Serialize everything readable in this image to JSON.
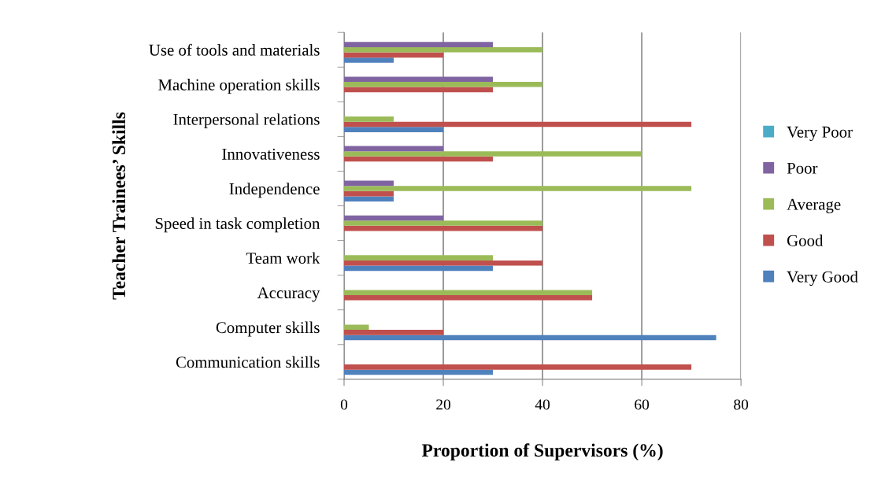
{
  "chart_data": {
    "type": "bar",
    "orientation": "horizontal",
    "xlabel": "Proportion of Supervisors (%)",
    "ylabel": "Teacher Trainees’ Skills",
    "categories": [
      "Use of tools and materials",
      "Machine operation skills",
      "Interpersonal relations",
      "Innovativeness",
      "Independence",
      "Speed in task completion",
      "Team work",
      "Accuracy",
      "Computer skills",
      "Communication skills"
    ],
    "series": [
      {
        "name": "Very Good",
        "color": "#4f81bd",
        "values": [
          10,
          null,
          20,
          null,
          10,
          null,
          30,
          null,
          75,
          30
        ]
      },
      {
        "name": "Good",
        "color": "#c0504d",
        "values": [
          20,
          30,
          70,
          30,
          10,
          40,
          40,
          50,
          20,
          70
        ]
      },
      {
        "name": "Average",
        "color": "#9bbb59",
        "values": [
          40,
          40,
          10,
          60,
          70,
          40,
          30,
          50,
          5,
          null
        ]
      },
      {
        "name": "Poor",
        "color": "#8064a2",
        "values": [
          30,
          30,
          null,
          20,
          10,
          20,
          null,
          null,
          null,
          null
        ]
      },
      {
        "name": "Very Poor",
        "color": "#4bacc6",
        "values": [
          null,
          null,
          null,
          null,
          null,
          null,
          null,
          null,
          null,
          null
        ]
      }
    ],
    "xlim": [
      0,
      80
    ],
    "xticks": [
      0,
      20,
      40,
      60,
      80
    ],
    "grid": "x",
    "legend": "right"
  }
}
